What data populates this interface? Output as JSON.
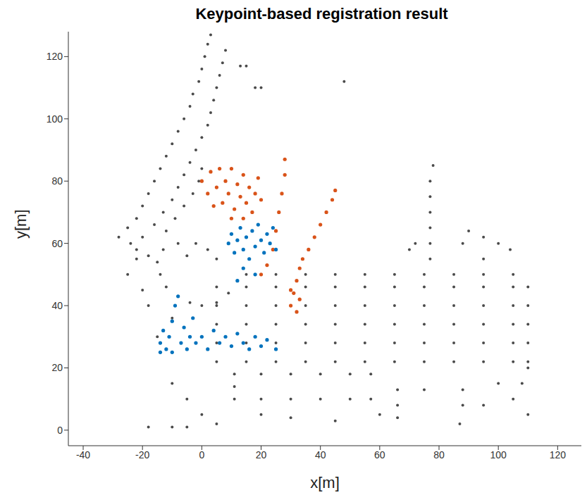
{
  "chart_data": {
    "type": "scatter",
    "title": "Keypoint-based registration result",
    "x_label": "x[m]",
    "y_label": "y[m]",
    "xlim": [
      -45,
      128
    ],
    "ylim": [
      -5,
      128
    ],
    "xticks": [
      -40,
      -20,
      0,
      20,
      40,
      60,
      80,
      100,
      120
    ],
    "yticks": [
      0,
      20,
      40,
      60,
      80,
      100,
      120
    ],
    "grid": false,
    "series": [
      {
        "color": "#4a4a4a",
        "marker": "circle",
        "points": [
          [
            -28,
            62
          ],
          [
            -25,
            65
          ],
          [
            -22,
            68
          ],
          [
            -20,
            72
          ],
          [
            -18,
            76
          ],
          [
            -16,
            80
          ],
          [
            -14,
            84
          ],
          [
            -12,
            88
          ],
          [
            -10,
            92
          ],
          [
            -8,
            96
          ],
          [
            -6,
            100
          ],
          [
            -4,
            104
          ],
          [
            -3,
            108
          ],
          [
            -1,
            112
          ],
          [
            0,
            116
          ],
          [
            1,
            120
          ],
          [
            2,
            124
          ],
          [
            3,
            127
          ],
          [
            -20,
            62
          ],
          [
            -16,
            66
          ],
          [
            -13,
            70
          ],
          [
            -10,
            74
          ],
          [
            -8,
            78
          ],
          [
            -6,
            82
          ],
          [
            -4,
            86
          ],
          [
            -2,
            90
          ],
          [
            0,
            94
          ],
          [
            2,
            98
          ],
          [
            3,
            102
          ],
          [
            4,
            106
          ],
          [
            5,
            110
          ],
          [
            6,
            114
          ],
          [
            7,
            118
          ],
          [
            8,
            122
          ],
          [
            -12,
            64
          ],
          [
            -9,
            68
          ],
          [
            -6,
            72
          ],
          [
            -3,
            76
          ],
          [
            -1,
            80
          ],
          [
            0,
            84
          ],
          [
            -22,
            58
          ],
          [
            -18,
            56
          ],
          [
            -24,
            60
          ],
          [
            13,
            117
          ],
          [
            15,
            117
          ],
          [
            18,
            110
          ],
          [
            20,
            110
          ],
          [
            48,
            112
          ],
          [
            -14,
            50
          ],
          [
            -12,
            46
          ],
          [
            -8,
            43
          ],
          [
            -4,
            41
          ],
          [
            0,
            40
          ],
          [
            5,
            41
          ],
          [
            9,
            44
          ],
          [
            -15,
            54
          ],
          [
            -13,
            58
          ],
          [
            -5,
            56
          ],
          [
            -2,
            60
          ],
          [
            2,
            58
          ],
          [
            5,
            55
          ],
          [
            -8,
            60
          ],
          [
            5,
            22
          ],
          [
            15,
            22
          ],
          [
            25,
            22
          ],
          [
            35,
            22
          ],
          [
            45,
            22
          ],
          [
            55,
            22
          ],
          [
            65,
            22
          ],
          [
            75,
            22
          ],
          [
            85,
            22
          ],
          [
            95,
            22
          ],
          [
            105,
            22
          ],
          [
            110,
            22
          ],
          [
            5,
            28
          ],
          [
            15,
            28
          ],
          [
            25,
            28
          ],
          [
            35,
            28
          ],
          [
            45,
            28
          ],
          [
            55,
            28
          ],
          [
            65,
            28
          ],
          [
            75,
            28
          ],
          [
            85,
            28
          ],
          [
            95,
            28
          ],
          [
            105,
            28
          ],
          [
            110,
            28
          ],
          [
            5,
            34
          ],
          [
            15,
            34
          ],
          [
            25,
            34
          ],
          [
            35,
            34
          ],
          [
            45,
            34
          ],
          [
            55,
            34
          ],
          [
            65,
            34
          ],
          [
            75,
            34
          ],
          [
            85,
            34
          ],
          [
            95,
            34
          ],
          [
            105,
            34
          ],
          [
            110,
            34
          ],
          [
            5,
            40
          ],
          [
            15,
            40
          ],
          [
            25,
            40
          ],
          [
            35,
            40
          ],
          [
            45,
            40
          ],
          [
            55,
            40
          ],
          [
            65,
            40
          ],
          [
            75,
            40
          ],
          [
            85,
            40
          ],
          [
            95,
            40
          ],
          [
            105,
            40
          ],
          [
            110,
            40
          ],
          [
            5,
            46
          ],
          [
            15,
            46
          ],
          [
            25,
            46
          ],
          [
            35,
            46
          ],
          [
            45,
            46
          ],
          [
            55,
            46
          ],
          [
            65,
            46
          ],
          [
            75,
            46
          ],
          [
            85,
            46
          ],
          [
            95,
            46
          ],
          [
            105,
            46
          ],
          [
            110,
            46
          ],
          [
            15,
            50
          ],
          [
            25,
            50
          ],
          [
            35,
            50
          ],
          [
            45,
            50
          ],
          [
            55,
            50
          ],
          [
            65,
            50
          ],
          [
            75,
            50
          ],
          [
            85,
            50
          ],
          [
            95,
            50
          ],
          [
            105,
            50
          ],
          [
            -15,
            30
          ],
          [
            -10,
            36
          ],
          [
            77,
            55
          ],
          [
            77,
            60
          ],
          [
            77,
            65
          ],
          [
            77,
            70
          ],
          [
            77,
            75
          ],
          [
            77,
            80
          ],
          [
            78,
            85
          ],
          [
            95,
            55
          ],
          [
            95,
            62
          ],
          [
            100,
            60
          ],
          [
            104,
            58
          ],
          [
            88,
            60
          ],
          [
            90,
            64
          ],
          [
            72,
            60
          ],
          [
            70,
            58
          ],
          [
            11,
            18
          ],
          [
            20,
            18
          ],
          [
            30,
            18
          ],
          [
            40,
            18
          ],
          [
            50,
            18
          ],
          [
            57,
            18
          ],
          [
            11,
            14
          ],
          [
            11,
            10
          ],
          [
            20,
            10
          ],
          [
            30,
            10
          ],
          [
            40,
            10
          ],
          [
            50,
            10
          ],
          [
            57,
            10
          ],
          [
            66,
            13
          ],
          [
            75,
            13
          ],
          [
            88,
            13
          ],
          [
            66,
            8
          ],
          [
            66,
            4
          ],
          [
            88,
            8
          ],
          [
            87,
            2
          ],
          [
            -10,
            15
          ],
          [
            -5,
            10
          ],
          [
            0,
            5
          ],
          [
            5,
            2
          ],
          [
            -18,
            1
          ],
          [
            -10,
            1
          ],
          [
            -5,
            1
          ],
          [
            100,
            15
          ],
          [
            105,
            10
          ],
          [
            110,
            5
          ],
          [
            95,
            8
          ],
          [
            60,
            5
          ],
          [
            45,
            3
          ],
          [
            30,
            4
          ],
          [
            20,
            5
          ],
          [
            110,
            20
          ],
          [
            108,
            15
          ],
          [
            -25,
            50
          ],
          [
            -20,
            45
          ],
          [
            -18,
            40
          ],
          [
            -22,
            55
          ]
        ]
      },
      {
        "color": "#d95319",
        "marker": "circle",
        "points": [
          [
            0,
            80
          ],
          [
            2,
            76
          ],
          [
            3,
            83
          ],
          [
            5,
            78
          ],
          [
            6,
            84
          ],
          [
            7,
            73
          ],
          [
            8,
            80
          ],
          [
            9,
            76
          ],
          [
            10,
            84
          ],
          [
            11,
            71
          ],
          [
            12,
            79
          ],
          [
            13,
            75
          ],
          [
            14,
            82
          ],
          [
            15,
            73
          ],
          [
            16,
            78
          ],
          [
            17,
            70
          ],
          [
            18,
            76
          ],
          [
            19,
            81
          ],
          [
            20,
            74
          ],
          [
            4,
            72
          ],
          [
            10,
            68
          ],
          [
            14,
            68
          ],
          [
            30,
            40
          ],
          [
            31,
            44
          ],
          [
            32,
            48
          ],
          [
            33,
            52
          ],
          [
            34,
            55
          ],
          [
            36,
            58
          ],
          [
            38,
            62
          ],
          [
            40,
            66
          ],
          [
            42,
            70
          ],
          [
            44,
            74
          ],
          [
            45,
            77
          ],
          [
            28,
            87
          ],
          [
            28,
            82
          ],
          [
            27,
            76
          ],
          [
            26,
            70
          ],
          [
            25,
            64
          ],
          [
            24,
            58
          ],
          [
            30,
            45
          ],
          [
            33,
            42
          ],
          [
            32,
            38
          ],
          [
            22,
            53
          ],
          [
            20,
            50
          ]
        ]
      },
      {
        "color": "#0072bd",
        "marker": "circle",
        "points": [
          [
            9,
            60
          ],
          [
            10,
            63
          ],
          [
            11,
            57
          ],
          [
            12,
            61
          ],
          [
            13,
            65
          ],
          [
            14,
            58
          ],
          [
            15,
            62
          ],
          [
            16,
            55
          ],
          [
            17,
            64
          ],
          [
            18,
            59
          ],
          [
            19,
            66
          ],
          [
            20,
            61
          ],
          [
            21,
            57
          ],
          [
            22,
            63
          ],
          [
            23,
            60
          ],
          [
            24,
            65
          ],
          [
            25,
            58
          ],
          [
            14,
            52
          ],
          [
            18,
            50
          ],
          [
            12,
            48
          ],
          [
            -14,
            28
          ],
          [
            -13,
            32
          ],
          [
            -12,
            26
          ],
          [
            -11,
            30
          ],
          [
            -10,
            35
          ],
          [
            -9,
            40
          ],
          [
            -8,
            43
          ],
          [
            -7,
            28
          ],
          [
            -6,
            33
          ],
          [
            -5,
            26
          ],
          [
            -4,
            30
          ],
          [
            -3,
            36
          ],
          [
            -2,
            28
          ],
          [
            0,
            30
          ],
          [
            2,
            26
          ],
          [
            4,
            32
          ],
          [
            6,
            28
          ],
          [
            8,
            30
          ],
          [
            10,
            27
          ],
          [
            12,
            31
          ],
          [
            14,
            28
          ],
          [
            16,
            26
          ],
          [
            18,
            30
          ],
          [
            20,
            27
          ],
          [
            22,
            29
          ],
          [
            25,
            26
          ],
          [
            -10,
            25
          ],
          [
            -14,
            25
          ]
        ]
      }
    ]
  }
}
